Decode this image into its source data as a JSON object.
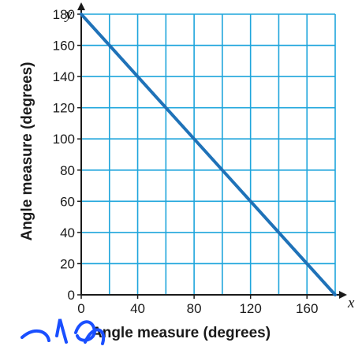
{
  "chart_data": {
    "type": "line",
    "xlabel": "Angle measure (degrees)",
    "ylabel": "Angle measure (degrees)",
    "x_axis_var": "x",
    "y_axis_var": "y",
    "xlim": [
      0,
      180
    ],
    "ylim": [
      0,
      180
    ],
    "x_grid_step": 20,
    "y_grid_step": 20,
    "x_ticks": [
      0,
      40,
      80,
      120,
      160
    ],
    "y_ticks": [
      0,
      20,
      40,
      60,
      80,
      100,
      120,
      140,
      160,
      180
    ],
    "grid": true,
    "series": [
      {
        "x": [
          0,
          180
        ],
        "y": [
          180,
          0
        ]
      }
    ],
    "colors": {
      "grid": "#1ea5dc",
      "line": "#1f72b8",
      "annotation": "#1a4fff"
    }
  }
}
